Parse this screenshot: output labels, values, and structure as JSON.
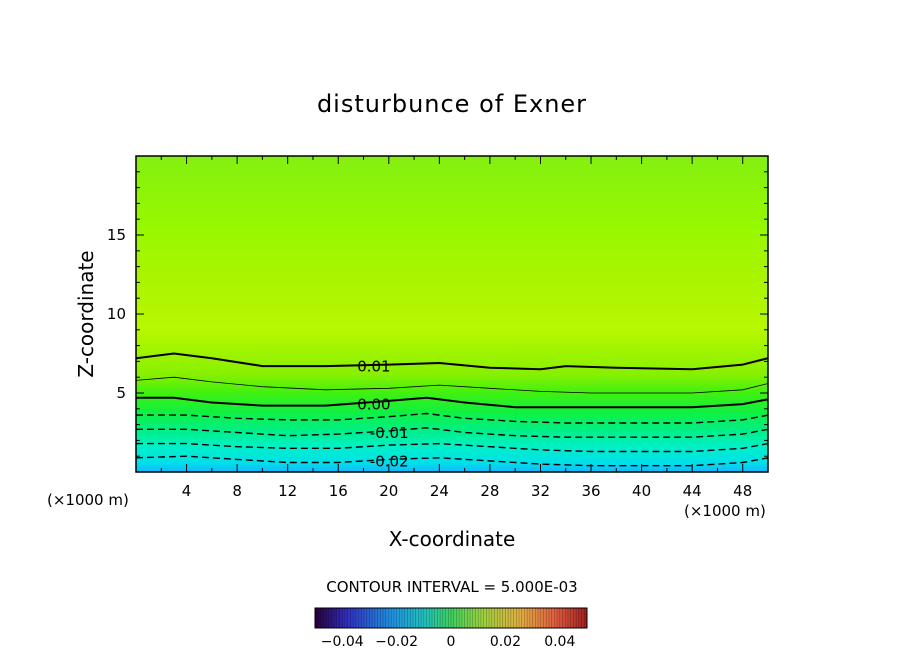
{
  "chart_data": {
    "type": "contour",
    "title": "disturbunce of Exner",
    "xlabel": "X-coordinate",
    "ylabel": "Z-coordinate",
    "x_unit": "(×1000 m)",
    "y_unit": "(×1000 m)",
    "xlim": [
      0,
      50
    ],
    "ylim": [
      0,
      20
    ],
    "x_ticks": [
      4,
      8,
      12,
      16,
      20,
      24,
      28,
      32,
      36,
      40,
      44,
      48
    ],
    "y_ticks": [
      5,
      10,
      15
    ],
    "contour_interval_text": "CONTOUR INTERVAL = 5.000E-03",
    "contour_interval": 0.005,
    "contours": [
      {
        "level": 0.01,
        "label": "0.01",
        "style": "solid",
        "label_x": 17.5,
        "x": [
          0,
          3,
          6,
          10,
          15,
          20,
          24,
          28,
          32,
          34,
          38,
          44,
          48,
          50
        ],
        "z": [
          7.2,
          7.5,
          7.2,
          6.7,
          6.7,
          6.8,
          6.9,
          6.6,
          6.5,
          6.7,
          6.6,
          6.5,
          6.8,
          7.2
        ]
      },
      {
        "level": 0.005,
        "label": "",
        "style": "thin",
        "x": [
          0,
          3,
          6,
          10,
          15,
          20,
          24,
          28,
          32,
          36,
          40,
          44,
          48,
          50
        ],
        "z": [
          5.8,
          6.0,
          5.7,
          5.4,
          5.2,
          5.3,
          5.5,
          5.3,
          5.1,
          5.0,
          5.0,
          5.0,
          5.2,
          5.6
        ]
      },
      {
        "level": 0.0,
        "label": "0.00",
        "style": "solid",
        "label_x": 17.5,
        "x": [
          0,
          3,
          6,
          10,
          15,
          20,
          23,
          26,
          30,
          34,
          38,
          44,
          48,
          50
        ],
        "z": [
          4.7,
          4.7,
          4.4,
          4.2,
          4.2,
          4.5,
          4.7,
          4.4,
          4.1,
          4.1,
          4.1,
          4.1,
          4.3,
          4.6
        ]
      },
      {
        "level": -0.005,
        "label": "",
        "style": "dashed",
        "x": [
          0,
          4,
          8,
          12,
          16,
          20,
          23,
          26,
          30,
          34,
          38,
          44,
          48,
          50
        ],
        "z": [
          3.6,
          3.6,
          3.4,
          3.3,
          3.3,
          3.5,
          3.7,
          3.4,
          3.2,
          3.1,
          3.1,
          3.1,
          3.3,
          3.6
        ]
      },
      {
        "level": -0.01,
        "label": "-0.01",
        "style": "dashed",
        "label_x": 18.5,
        "x": [
          0,
          4,
          8,
          12,
          16,
          20,
          23,
          26,
          30,
          34,
          38,
          44,
          48,
          50
        ],
        "z": [
          2.7,
          2.7,
          2.5,
          2.3,
          2.4,
          2.6,
          2.8,
          2.5,
          2.3,
          2.2,
          2.2,
          2.2,
          2.4,
          2.7
        ]
      },
      {
        "level": -0.015,
        "label": "",
        "style": "dashed",
        "x": [
          0,
          4,
          8,
          12,
          16,
          20,
          24,
          28,
          32,
          36,
          40,
          44,
          48,
          50
        ],
        "z": [
          1.8,
          1.8,
          1.6,
          1.5,
          1.5,
          1.7,
          1.8,
          1.6,
          1.4,
          1.3,
          1.3,
          1.3,
          1.5,
          1.8
        ]
      },
      {
        "level": -0.02,
        "label": "-0.02",
        "style": "dashed",
        "label_x": 18.5,
        "x": [
          0,
          4,
          8,
          12,
          16,
          20,
          24,
          28,
          32,
          36,
          40,
          44,
          48,
          50
        ],
        "z": [
          0.9,
          1.0,
          0.8,
          0.6,
          0.6,
          0.8,
          0.9,
          0.7,
          0.5,
          0.4,
          0.4,
          0.4,
          0.6,
          0.9
        ]
      }
    ],
    "colorbar": {
      "tick_labels": [
        "−0.04",
        "−0.02",
        "0",
        "0.02",
        "0.04"
      ],
      "tick_values": [
        -0.04,
        -0.02,
        0,
        0.02,
        0.04
      ],
      "range": [
        -0.05,
        0.05
      ]
    }
  }
}
